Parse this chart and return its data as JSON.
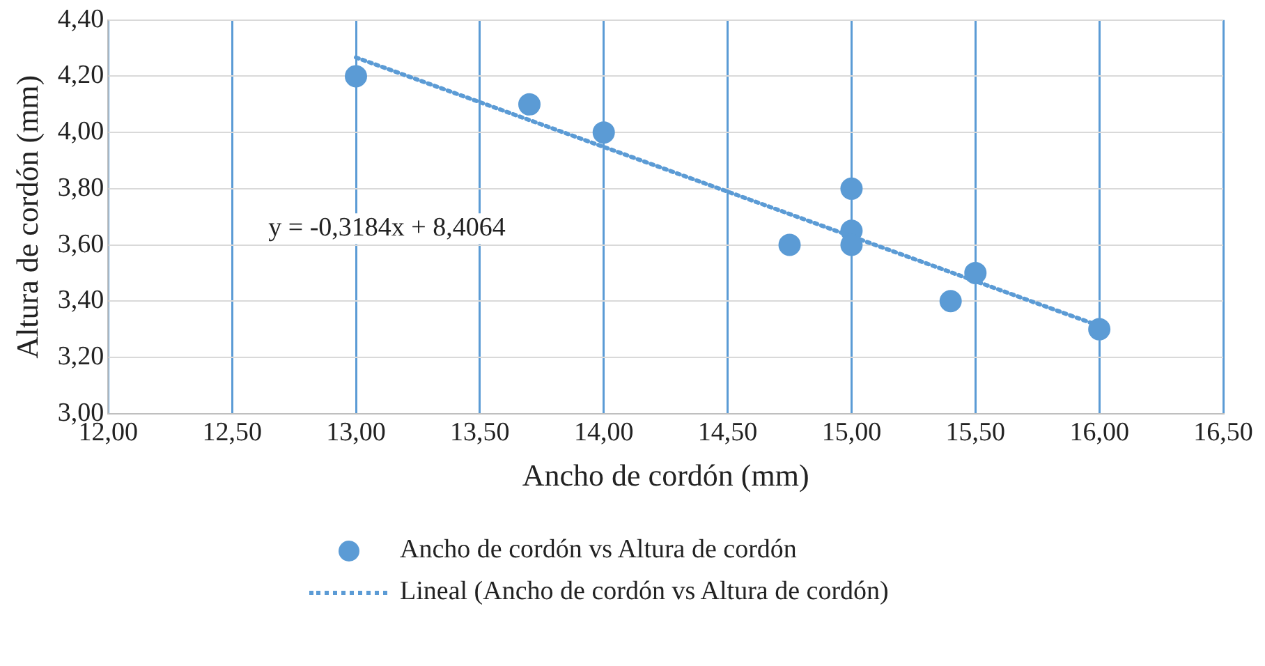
{
  "chart_data": {
    "type": "scatter",
    "xlabel": "Ancho de cordón (mm)",
    "ylabel": "Altura de cordón (mm)",
    "xlim": [
      12,
      16.5
    ],
    "ylim": [
      3,
      4.4
    ],
    "xticks": [
      {
        "value": 12,
        "label": "12,00"
      },
      {
        "value": 12.5,
        "label": "12,50"
      },
      {
        "value": 13,
        "label": "13,00"
      },
      {
        "value": 13.5,
        "label": "13,50"
      },
      {
        "value": 14,
        "label": "14,00"
      },
      {
        "value": 14.5,
        "label": "14,50"
      },
      {
        "value": 15,
        "label": "15,00"
      },
      {
        "value": 15.5,
        "label": "15,50"
      },
      {
        "value": 16,
        "label": "16,00"
      },
      {
        "value": 16.5,
        "label": "16,50"
      }
    ],
    "yticks": [
      {
        "value": 3,
        "label": "3,00"
      },
      {
        "value": 3.2,
        "label": "3,20"
      },
      {
        "value": 3.4,
        "label": "3,40"
      },
      {
        "value": 3.6,
        "label": "3,60"
      },
      {
        "value": 3.8,
        "label": "3,80"
      },
      {
        "value": 4,
        "label": "4,00"
      },
      {
        "value": 4.2,
        "label": "4,20"
      },
      {
        "value": 4.4,
        "label": "4,40"
      }
    ],
    "grid": true,
    "legend": "bottom",
    "series": [
      {
        "name": "Ancho de cordón vs Altura de cordón",
        "color": "#5b9bd5",
        "marker": "circle",
        "x": [
          13,
          13.7,
          14,
          14.75,
          15,
          15,
          15,
          15.4,
          15.5,
          16
        ],
        "values": [
          4.2,
          4.1,
          4.0,
          3.6,
          3.8,
          3.65,
          3.6,
          3.4,
          3.5,
          3.3
        ]
      },
      {
        "name": "Lineal (Ancho de cordón vs Altura de cordón)",
        "type": "line",
        "color": "#5b9bd5",
        "marker": "none",
        "line_style": "dotted",
        "x": [
          13,
          16
        ],
        "values": [
          4.267,
          3.312
        ]
      }
    ],
    "annotations": [
      "y = -0,3184x + 8,4064"
    ]
  }
}
